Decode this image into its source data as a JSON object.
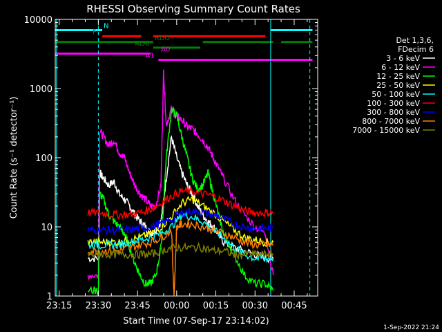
{
  "chart_data": {
    "type": "line",
    "title": "RHESSI Observing Summary Count Rates",
    "xlabel": "Start Time (07-Sep-17 23:14:02)",
    "ylabel": "Count Rate (s⁻¹ detector⁻¹)",
    "y_scale": "log",
    "ylim": [
      1,
      10000
    ],
    "xlim_minutes_from_start": [
      -0.5,
      100
    ],
    "x_ticks": [
      {
        "label": "23:15",
        "minute": 1
      },
      {
        "label": "23:30",
        "minute": 16
      },
      {
        "label": "23:45",
        "minute": 31
      },
      {
        "label": "00:00",
        "minute": 46
      },
      {
        "label": "00:15",
        "minute": 61
      },
      {
        "label": "00:30",
        "minute": 76
      },
      {
        "label": "00:45",
        "minute": 91
      }
    ],
    "y_ticks": [
      {
        "label": "1",
        "value": 1
      },
      {
        "label": "10",
        "value": 10
      },
      {
        "label": "100",
        "value": 100
      },
      {
        "label": "1000",
        "value": 1000
      },
      {
        "label": "10000",
        "value": 10000
      }
    ],
    "legend": {
      "placement": "right",
      "header": [
        "Det 1,3,6,",
        "FDecim 6"
      ],
      "entries": [
        {
          "label": "3 - 6 keV",
          "color": "#ffffff"
        },
        {
          "label": "6 - 12 keV",
          "color": "#ff00ff"
        },
        {
          "label": "12 - 25 keV",
          "color": "#00ff00"
        },
        {
          "label": "25 - 50 keV",
          "color": "#ffff00"
        },
        {
          "label": "50 - 100 keV",
          "color": "#00ffff"
        },
        {
          "label": "100 - 300 keV",
          "color": "#ff0000"
        },
        {
          "label": "300 - 800 keV",
          "color": "#0000ff"
        },
        {
          "label": "800 - 7000 keV",
          "color": "#ff8000"
        },
        {
          "label": "7000 - 15000 keV",
          "color": "#808000"
        }
      ]
    },
    "flag_bars": [
      {
        "label": "N",
        "color": "#00ffff",
        "y_value": 7000,
        "segments": [
          [
            -0.5,
            17.5
          ],
          [
            82,
            98
          ]
        ]
      },
      {
        "label": "F",
        "color": "#ff0000",
        "y_value": 5700,
        "segments": [
          [
            17.5,
            32.5
          ],
          [
            37,
            80
          ]
        ]
      },
      {
        "label": "RDO",
        "color": "#008000",
        "y_value": 4700,
        "segments": [
          [
            -0.5,
            37
          ],
          [
            56,
            83
          ],
          [
            86,
            98
          ]
        ]
      },
      {
        "label": "RD6",
        "color": "#008000",
        "y_value": 3900,
        "segments": [
          [
            37,
            55
          ]
        ]
      },
      {
        "label": "A0",
        "color": "#ff00ff",
        "y_value": 3200,
        "segments": [
          [
            -0.5,
            36
          ]
        ]
      },
      {
        "label": "A1",
        "color": "#ff00ff",
        "y_value": 2600,
        "segments": [
          [
            39,
            98
          ]
        ]
      }
    ],
    "vertical_markers": [
      {
        "minute": 0,
        "color": "#00ffff",
        "style": "solid"
      },
      {
        "minute": 16,
        "color": "#00ffff",
        "style": "dashed"
      },
      {
        "minute": 82,
        "color": "#00ffff",
        "style": "solid"
      },
      {
        "minute": 97,
        "color": "#00ffff",
        "style": "dashed"
      }
    ],
    "series": [
      {
        "name": "3 - 6 keV",
        "color": "#ffffff",
        "x": [
          12,
          16,
          16.5,
          18,
          20,
          22,
          24,
          26,
          28,
          30,
          32,
          34,
          36,
          38,
          40,
          42,
          44,
          46,
          48,
          50,
          52,
          54,
          56,
          58,
          60,
          62,
          64,
          68,
          72,
          76,
          80,
          83
        ],
        "y": [
          3.5,
          3.5,
          60,
          50,
          40,
          45,
          30,
          25,
          20,
          15,
          12,
          10,
          8,
          9,
          12,
          50,
          200,
          100,
          60,
          40,
          30,
          20,
          15,
          12,
          10,
          8,
          6,
          5,
          4.5,
          4,
          3.5,
          3.5
        ]
      },
      {
        "name": "6 - 12 keV",
        "color": "#ff00ff",
        "x": [
          12,
          16,
          16.5,
          18,
          20,
          22,
          24,
          26,
          28,
          30,
          32,
          34,
          36,
          38,
          40,
          41,
          42,
          44,
          46,
          48,
          50,
          52,
          54,
          56,
          58,
          60,
          62,
          64,
          68,
          72,
          76,
          80,
          83
        ],
        "y": [
          2,
          2,
          250,
          200,
          150,
          180,
          120,
          100,
          60,
          40,
          30,
          25,
          20,
          20,
          40,
          1800,
          300,
          500,
          400,
          350,
          280,
          260,
          220,
          180,
          140,
          100,
          70,
          50,
          25,
          15,
          10,
          8,
          2
        ]
      },
      {
        "name": "12 - 25 keV",
        "color": "#00ff00",
        "x": [
          12,
          16,
          16.5,
          18,
          20,
          22,
          24,
          26,
          28,
          30,
          32,
          34,
          36,
          38,
          40,
          42,
          44,
          46,
          48,
          50,
          52,
          54,
          56,
          58,
          60,
          62,
          64,
          68,
          72,
          76,
          80,
          83
        ],
        "y": [
          1.2,
          1.2,
          30,
          25,
          15,
          12,
          10,
          8,
          5,
          3,
          2,
          1.5,
          1.5,
          2,
          5,
          100,
          500,
          400,
          200,
          100,
          50,
          35,
          40,
          60,
          30,
          15,
          8,
          4,
          2,
          1.5,
          1.5,
          1.2
        ]
      },
      {
        "name": "25 - 50 keV",
        "color": "#ffff00",
        "x": [
          12,
          16,
          20,
          24,
          28,
          32,
          36,
          40,
          44,
          48,
          52,
          56,
          60,
          64,
          68,
          72,
          76,
          80,
          83
        ],
        "y": [
          6,
          6,
          6,
          6,
          6.5,
          7,
          8,
          10,
          14,
          22,
          25,
          20,
          16,
          12,
          9,
          7,
          6.5,
          6,
          6
        ]
      },
      {
        "name": "50 - 100 keV",
        "color": "#00ffff",
        "x": [
          12,
          16,
          20,
          24,
          28,
          32,
          36,
          40,
          44,
          48,
          52,
          56,
          60,
          64,
          68,
          72,
          76,
          80,
          83
        ],
        "y": [
          5.5,
          5.5,
          5.5,
          5.5,
          6,
          6.5,
          7,
          8,
          10,
          15,
          14,
          12,
          9,
          7,
          5,
          4,
          3.5,
          3.5,
          3.5
        ]
      },
      {
        "name": "100 - 300 keV",
        "color": "#ff0000",
        "x": [
          12,
          16,
          20,
          24,
          28,
          32,
          36,
          40,
          44,
          48,
          52,
          56,
          60,
          64,
          68,
          72,
          76,
          80,
          83
        ],
        "y": [
          16,
          16,
          15,
          15,
          15,
          16,
          18,
          22,
          28,
          33,
          32,
          30,
          28,
          24,
          20,
          17,
          16,
          16,
          16
        ]
      },
      {
        "name": "300 - 800 keV",
        "color": "#0000ff",
        "x": [
          12,
          16,
          20,
          24,
          28,
          32,
          36,
          40,
          44,
          48,
          52,
          56,
          60,
          64,
          68,
          72,
          76,
          80,
          83
        ],
        "y": [
          9,
          9,
          9,
          9,
          9,
          9.5,
          10,
          11,
          13,
          16,
          17,
          16,
          15,
          13,
          11,
          10,
          9.5,
          9.5,
          9.5
        ]
      },
      {
        "name": "800 - 7000 keV",
        "color": "#ff8000",
        "x": [
          12,
          16,
          20,
          24,
          28,
          32,
          36,
          40,
          44,
          45,
          46,
          48,
          52,
          56,
          60,
          64,
          68,
          72,
          76,
          80,
          83
        ],
        "y": [
          4.5,
          4.5,
          4.5,
          4.5,
          5,
          5.5,
          6,
          7,
          9,
          1,
          10,
          11,
          11,
          10,
          9,
          8,
          7,
          6,
          5.5,
          5.5,
          5.5
        ]
      },
      {
        "name": "7000 - 15000 keV",
        "color": "#808000",
        "x": [
          12,
          16,
          20,
          24,
          28,
          32,
          36,
          40,
          44,
          48,
          52,
          56,
          60,
          64,
          68,
          72,
          76,
          80,
          83
        ],
        "y": [
          4,
          4,
          4,
          4,
          4,
          4,
          4,
          4.5,
          5,
          5,
          5,
          5,
          4.5,
          4.5,
          4,
          4,
          4,
          4,
          4
        ]
      }
    ],
    "footer_date": "1-Sep-2022 21:24"
  }
}
